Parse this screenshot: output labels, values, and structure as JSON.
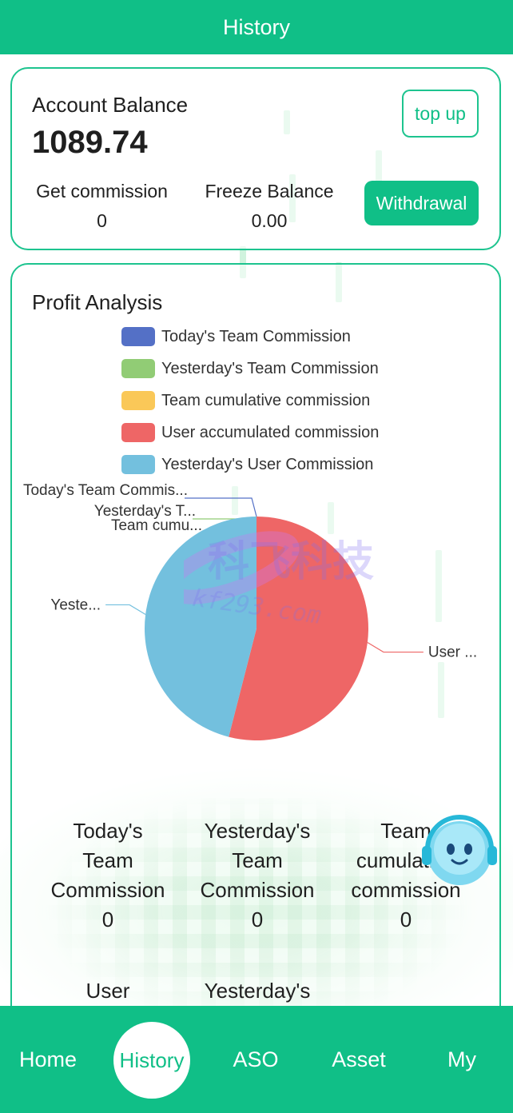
{
  "header": {
    "title": "History"
  },
  "balance": {
    "title": "Account Balance",
    "amount": "1089.74",
    "topup_label": "top up",
    "commission_label": "Get commission",
    "commission_value": "0",
    "freeze_label": "Freeze Balance",
    "freeze_value": "0.00",
    "withdraw_label": "Withdrawal"
  },
  "profit": {
    "title": "Profit Analysis"
  },
  "chart_data": {
    "type": "pie",
    "title": "",
    "legend_position": "top",
    "slices": [
      {
        "name": "Today's Team Commission",
        "value": 0,
        "color": "#5470c6",
        "label": "Today's Team Commis..."
      },
      {
        "name": "Yesterday's Team Commission",
        "value": 0,
        "color": "#91cc75",
        "label": "Yesterday's T..."
      },
      {
        "name": "Team cumulative commission",
        "value": 0,
        "color": "#fac858",
        "label": "Team cumu..."
      },
      {
        "name": "User accumulated commission",
        "value": 54,
        "color": "#ee6666",
        "label": "User ..."
      },
      {
        "name": "Yesterday's User Commission",
        "value": 46,
        "color": "#73c0de",
        "label": "Yeste..."
      }
    ]
  },
  "metrics": [
    {
      "label_lines": [
        "Today's",
        "Team",
        "Commission"
      ],
      "value": "0"
    },
    {
      "label_lines": [
        "Yesterday's",
        "Team",
        "Commission"
      ],
      "value": "0"
    },
    {
      "label_lines": [
        "Team",
        "cumulative",
        "commission"
      ],
      "value": "0"
    },
    {
      "label_lines": [
        "User"
      ],
      "value": ""
    },
    {
      "label_lines": [
        "Yesterday's"
      ],
      "value": ""
    }
  ],
  "watermark": {
    "text_cn": "科飞科技",
    "text_en": "kf293.com"
  },
  "nav": {
    "items": [
      {
        "label": "Home"
      },
      {
        "label": "History",
        "active": true
      },
      {
        "label": "ASO"
      },
      {
        "label": "Asset"
      },
      {
        "label": "My"
      }
    ]
  },
  "colors": {
    "accent": "#10bf87",
    "border": "#1dc48f"
  }
}
